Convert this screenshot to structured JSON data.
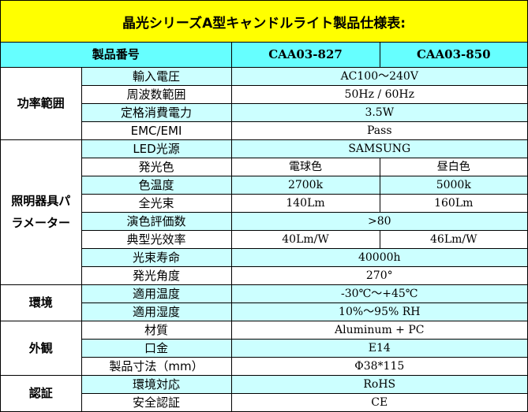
{
  "title": "晶光シリーズA型キャンドルライト製品仕様表:",
  "header": {
    "product_no_label": "製品番号",
    "model_a": "CAA03-827",
    "model_b": "CAA03-850"
  },
  "groups": {
    "power": "功率範囲",
    "lighting": "照明器具パラメーター",
    "environment": "環境",
    "appearance": "外観",
    "certification": "認証"
  },
  "rows": {
    "input_voltage": {
      "label": "輸入電圧",
      "value": "AC100～240V"
    },
    "frequency": {
      "label": "周波数範囲",
      "value": "50Hz / 60Hz"
    },
    "rated_power": {
      "label": "定格消費電力",
      "value": "3.5W"
    },
    "emc": {
      "label": "EMC/EMI",
      "value": "Pass"
    },
    "led_source": {
      "label": "LED光源",
      "value": "SAMSUNG"
    },
    "light_color": {
      "label": "発光色",
      "value_a": "電球色",
      "value_b": "昼白色"
    },
    "color_temp": {
      "label": "色温度",
      "value_a": "2700k",
      "value_b": "5000k"
    },
    "luminous_flux": {
      "label": "全光束",
      "value_a": "140Lm",
      "value_b": "160Lm"
    },
    "cri": {
      "label": "演色評価数",
      "value": ">80"
    },
    "efficacy": {
      "label": "典型光效率",
      "value_a": "40Lm/W",
      "value_b": "46Lm/W"
    },
    "lifetime": {
      "label": "光束寿命",
      "value": "40000h"
    },
    "beam_angle": {
      "label": "発光角度",
      "value": "270°"
    },
    "op_temp": {
      "label": "適用温度",
      "value": "-30℃～+45℃"
    },
    "op_humidity": {
      "label": "適用湿度",
      "value": "10%～95% RH"
    },
    "material": {
      "label": "材質",
      "value": "Aluminum + PC"
    },
    "base": {
      "label": "口金",
      "value": "E14"
    },
    "dimensions": {
      "label": "製品寸法（mm）",
      "value": "Φ38*115"
    },
    "env_compliance": {
      "label": "環境対応",
      "value": "RoHS"
    },
    "safety_cert": {
      "label": "安全認証",
      "value": "CE"
    }
  },
  "colors": {
    "title_bg": "#ffff00",
    "header_bg": "#66ffff",
    "row_cyan": "#ccffff",
    "row_white": "#ffffff"
  }
}
